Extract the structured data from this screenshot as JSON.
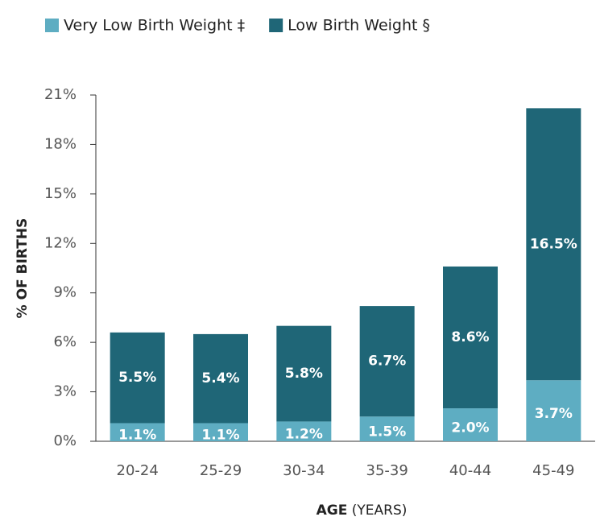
{
  "chart_data": {
    "type": "stacked_bar",
    "categories": [
      "20-24",
      "25-29",
      "30-34",
      "35-39",
      "40-44",
      "45-49"
    ],
    "series": [
      {
        "name": "Very Low Birth Weight ‡",
        "color": "#5eadc2",
        "values": [
          1.1,
          1.1,
          1.2,
          1.5,
          2.0,
          3.7
        ],
        "value_labels": [
          "1.1%",
          "1.1%",
          "1.2%",
          "1.5%",
          "2.0%",
          "3.7%"
        ]
      },
      {
        "name": "Low Birth Weight §",
        "color": "#1f6677",
        "values": [
          5.5,
          5.4,
          5.8,
          6.7,
          8.6,
          16.5
        ],
        "value_labels": [
          "5.5%",
          "5.4%",
          "5.8%",
          "6.7%",
          "8.6%",
          "16.5%"
        ]
      }
    ],
    "ylabel": "% OF BIRTHS",
    "xlabel": [
      "AGE",
      "(YEARS)"
    ],
    "ylim": [
      0,
      21
    ],
    "yticks": [
      {
        "value": 0,
        "label": "0%"
      },
      {
        "value": 3,
        "label": "3%"
      },
      {
        "value": 6,
        "label": "6%"
      },
      {
        "value": 9,
        "label": "9%"
      },
      {
        "value": 12,
        "label": "12%"
      },
      {
        "value": 15,
        "label": "15%"
      },
      {
        "value": 18,
        "label": "18%"
      },
      {
        "value": 21,
        "label": "21%"
      }
    ],
    "legend": "top-left"
  }
}
